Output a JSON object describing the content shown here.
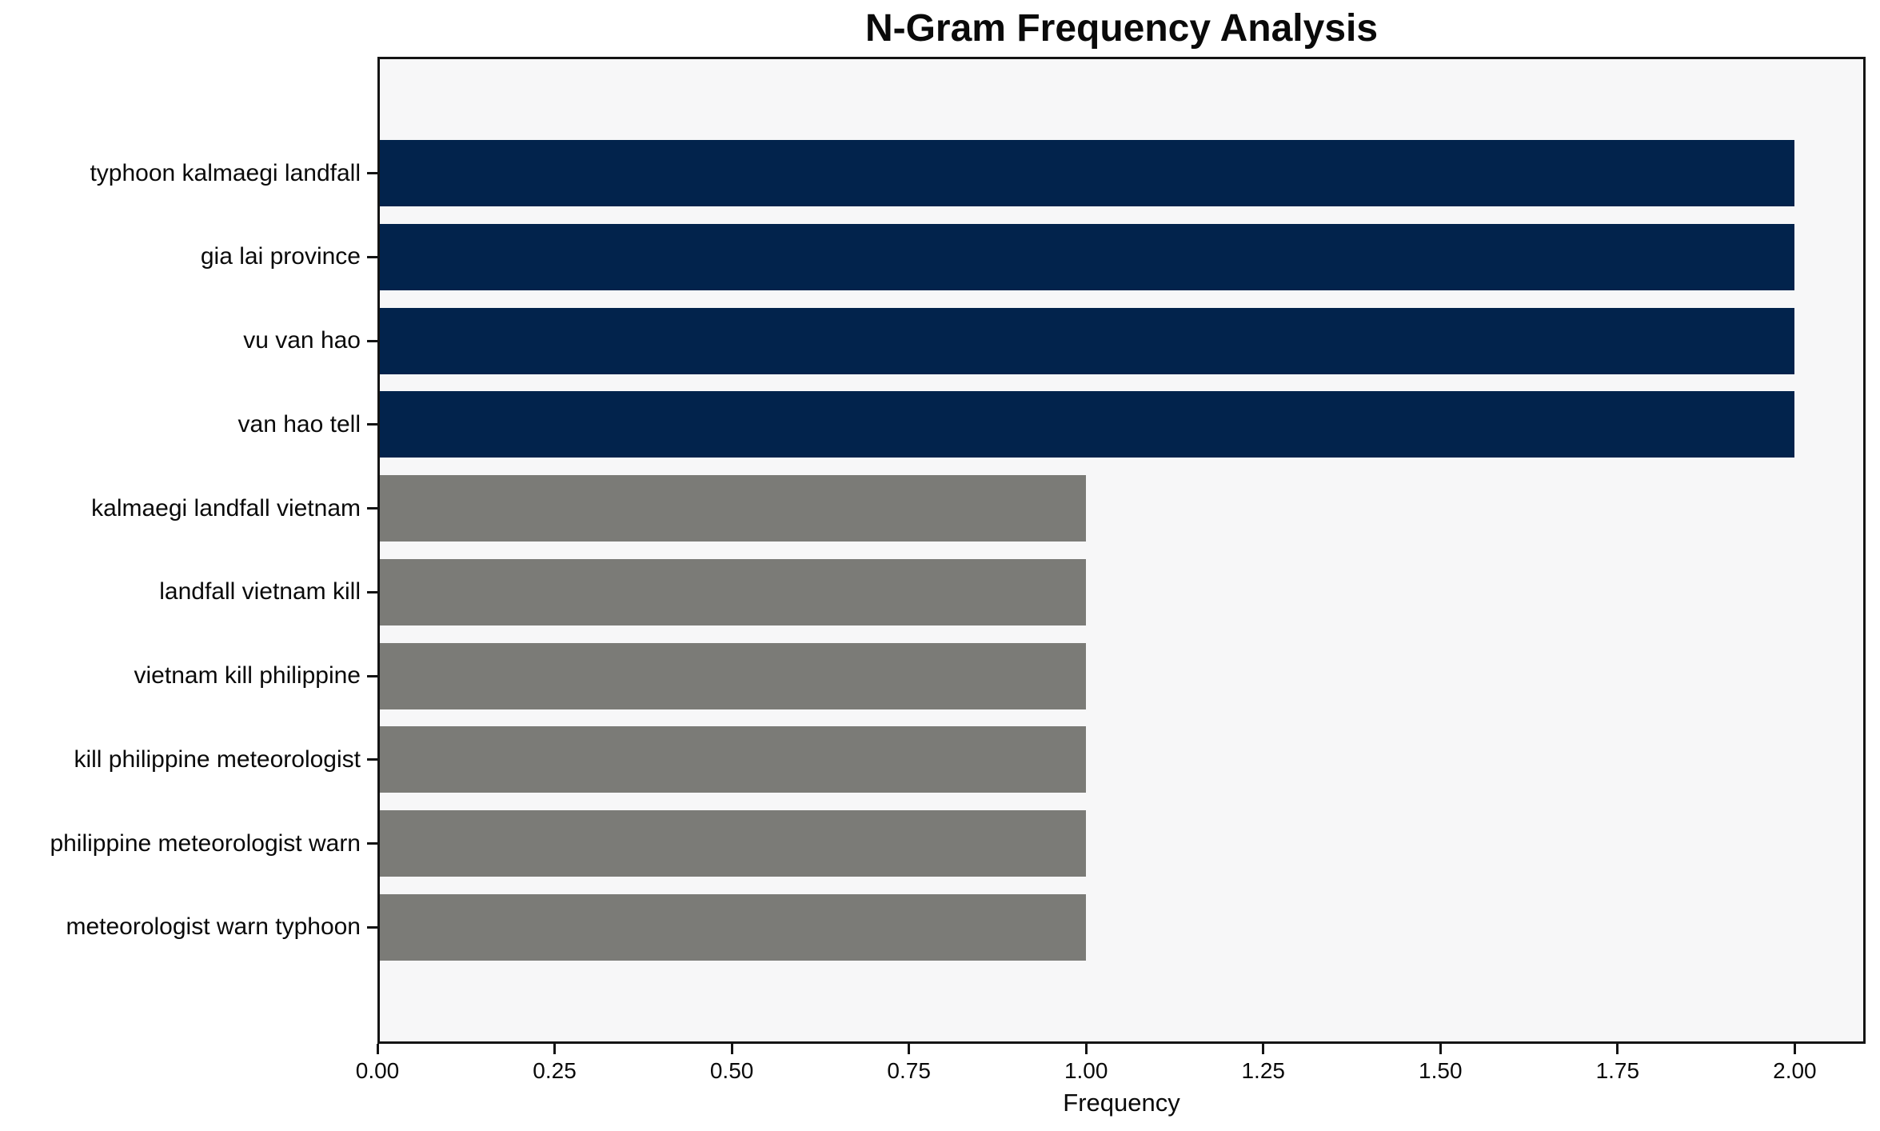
{
  "chart_data": {
    "type": "bar",
    "orientation": "horizontal",
    "title": "N-Gram Frequency Analysis",
    "xlabel": "Frequency",
    "ylabel": "",
    "categories": [
      "typhoon kalmaegi landfall",
      "gia lai province",
      "vu van hao",
      "van hao tell",
      "kalmaegi landfall vietnam",
      "landfall vietnam kill",
      "vietnam kill philippine",
      "kill philippine meteorologist",
      "philippine meteorologist warn",
      "meteorologist warn typhoon"
    ],
    "values": [
      2,
      2,
      2,
      2,
      1,
      1,
      1,
      1,
      1,
      1
    ],
    "xlim": [
      0,
      2.1
    ],
    "xticks": [
      0.0,
      0.25,
      0.5,
      0.75,
      1.0,
      1.25,
      1.5,
      1.75,
      2.0
    ],
    "xtick_labels": [
      "0.00",
      "0.25",
      "0.50",
      "0.75",
      "1.00",
      "1.25",
      "1.50",
      "1.75",
      "2.00"
    ],
    "grid": false,
    "legend": false,
    "colors": {
      "highlight_bar": "#02234c",
      "default_bar": "#7b7b77",
      "bar_colors": [
        "#02234c",
        "#02234c",
        "#02234c",
        "#02234c",
        "#7b7b77",
        "#7b7b77",
        "#7b7b77",
        "#7b7b77",
        "#7b7b77",
        "#7b7b77"
      ],
      "plot_background": "#f7f7f8",
      "figure_background": "#ffffff",
      "spine": "#141414",
      "text": "#0a0a0a"
    }
  }
}
